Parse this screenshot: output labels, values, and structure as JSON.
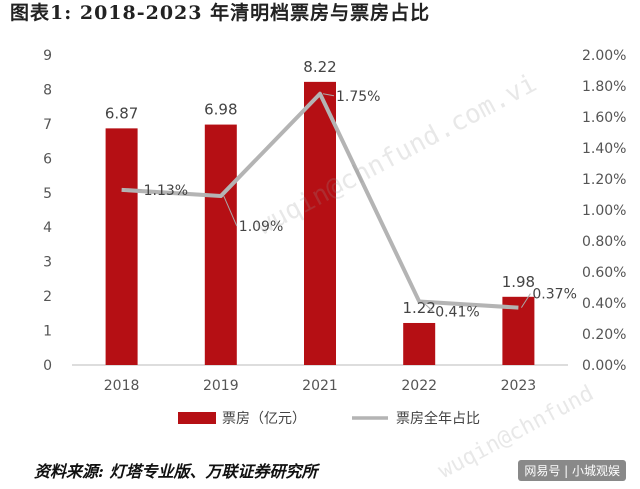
{
  "figure": {
    "title": "图表1:    2018-2023 年清明档票房与票房占比",
    "source": "资料来源: 灯塔专业版、万联证券研究所",
    "brand": "网易号 | 小城观娱",
    "watermarks": [
      "wuqin@chnfund.com.vi",
      "wuqin@chnfund"
    ]
  },
  "chart_data": {
    "type": "bar",
    "categories": [
      "2018",
      "2019",
      "2021",
      "2022",
      "2023"
    ],
    "series": [
      {
        "name": "票房（亿元）",
        "type": "bar",
        "axis": "left",
        "values": [
          6.87,
          6.98,
          8.22,
          1.22,
          1.98
        ],
        "labels": [
          "6.87",
          "6.98",
          "8.22",
          "1.22",
          "1.98"
        ],
        "color": "#b50f14"
      },
      {
        "name": "票房全年占比",
        "type": "line",
        "axis": "right",
        "values": [
          1.13,
          1.09,
          1.75,
          0.41,
          0.37
        ],
        "labels": [
          "1.13%",
          "1.09%",
          "1.75%",
          "0.41%",
          "0.37%"
        ],
        "color": "#b4b4b4"
      }
    ],
    "ylim": [
      0,
      9
    ],
    "yticks": [
      "0",
      "1",
      "2",
      "3",
      "4",
      "5",
      "6",
      "7",
      "8",
      "9"
    ],
    "y2lim": [
      0,
      2.0
    ],
    "y2ticks": [
      "0.00%",
      "0.20%",
      "0.40%",
      "0.60%",
      "0.80%",
      "1.00%",
      "1.20%",
      "1.40%",
      "1.60%",
      "1.80%",
      "2.00%"
    ],
    "grid": false,
    "legend": "bottom"
  }
}
